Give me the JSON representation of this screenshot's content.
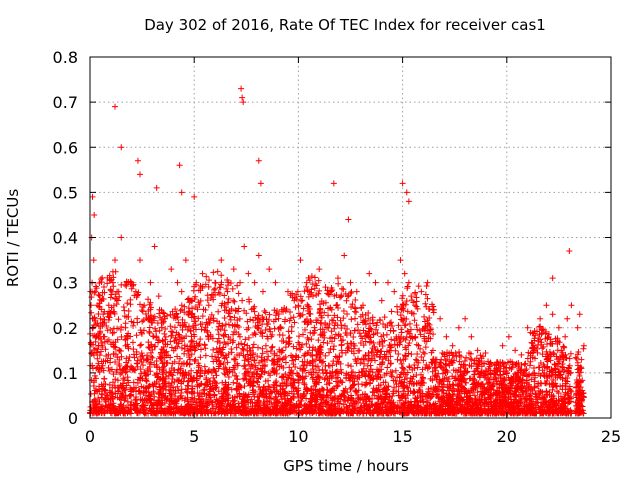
{
  "chart_data": {
    "type": "scatter",
    "title": "Day 302 of 2016, Rate Of TEC Index for receiver cas1",
    "xlabel": "GPS time / hours",
    "ylabel": "ROTI / TECUs",
    "xlim": [
      0,
      25
    ],
    "ylim": [
      0,
      0.8
    ],
    "xticks": [
      "0",
      "5",
      "10",
      "15",
      "20",
      "25"
    ],
    "yticks": [
      "0",
      "0.1",
      "0.2",
      "0.3",
      "0.4",
      "0.5",
      "0.6",
      "0.7",
      "0.8"
    ],
    "grid": true,
    "marker": "+",
    "color": "#ff0000",
    "series": [
      {
        "name": "cas1",
        "x": [
          0.05,
          0.1,
          0.15,
          0.2,
          0.25,
          0.3,
          0.12,
          0.18,
          0.22,
          0.08,
          0.5,
          0.7,
          0.9,
          1.1,
          1.2,
          1.3,
          1.5,
          1.7,
          2.0,
          2.2,
          2.4,
          2.6,
          2.9,
          3.1,
          3.3,
          3.6,
          3.9,
          4.2,
          4.4,
          4.6,
          4.9,
          5.1,
          5.4,
          5.7,
          6.0,
          6.3,
          6.6,
          6.9,
          7.2,
          7.3,
          7.4,
          7.6,
          7.9,
          8.1,
          8.3,
          8.6,
          8.9,
          9.2,
          9.5,
          9.8,
          10.1,
          10.4,
          10.7,
          11.0,
          11.3,
          11.6,
          11.9,
          12.2,
          12.5,
          12.8,
          13.1,
          13.4,
          13.7,
          14.0,
          14.3,
          14.6,
          14.9,
          15.1,
          15.3,
          15.6,
          15.9,
          16.2,
          16.5,
          16.8,
          17.1,
          17.4,
          17.7,
          18.0,
          18.3,
          18.6,
          18.9,
          19.2,
          19.5,
          19.8,
          20.1,
          20.4,
          20.7,
          21.0,
          21.3,
          21.6,
          21.9,
          22.2,
          22.5,
          22.8,
          23.1,
          23.4,
          23.7,
          1.2,
          1.5,
          2.3,
          2.4,
          3.2,
          4.3,
          4.4,
          5.0,
          7.25,
          7.3,
          7.35,
          8.1,
          8.2,
          11.7,
          12.4,
          15.0,
          15.2,
          15.3,
          22.2,
          22.9,
          23.0,
          23.5
        ],
        "y": [
          0.25,
          0.3,
          0.2,
          0.45,
          0.28,
          0.18,
          0.49,
          0.35,
          0.22,
          0.4,
          0.22,
          0.18,
          0.25,
          0.3,
          0.35,
          0.28,
          0.4,
          0.2,
          0.3,
          0.28,
          0.35,
          0.25,
          0.3,
          0.38,
          0.27,
          0.22,
          0.33,
          0.3,
          0.28,
          0.35,
          0.26,
          0.3,
          0.32,
          0.25,
          0.3,
          0.35,
          0.28,
          0.33,
          0.3,
          0.26,
          0.38,
          0.32,
          0.3,
          0.36,
          0.28,
          0.33,
          0.3,
          0.24,
          0.28,
          0.26,
          0.35,
          0.3,
          0.27,
          0.33,
          0.29,
          0.24,
          0.31,
          0.36,
          0.3,
          0.28,
          0.25,
          0.32,
          0.3,
          0.26,
          0.3,
          0.28,
          0.35,
          0.32,
          0.3,
          0.25,
          0.28,
          0.3,
          0.24,
          0.22,
          0.18,
          0.16,
          0.2,
          0.22,
          0.18,
          0.15,
          0.12,
          0.1,
          0.11,
          0.16,
          0.18,
          0.15,
          0.14,
          0.2,
          0.16,
          0.22,
          0.25,
          0.23,
          0.2,
          0.18,
          0.25,
          0.2,
          0.16,
          0.69,
          0.6,
          0.57,
          0.54,
          0.51,
          0.56,
          0.5,
          0.49,
          0.73,
          0.71,
          0.7,
          0.57,
          0.52,
          0.52,
          0.44,
          0.52,
          0.5,
          0.48,
          0.31,
          0.22,
          0.37,
          0.23
        ]
      }
    ]
  }
}
